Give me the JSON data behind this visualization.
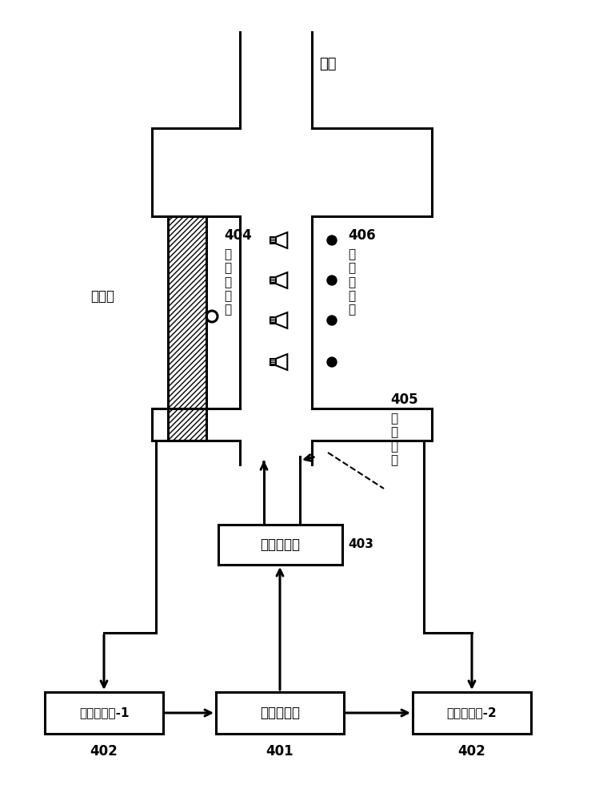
{
  "bg_color": "#ffffff",
  "line_color": "#000000",
  "wall_label": "墻體",
  "louver_label": "百葉窗",
  "ref_label_404": "404",
  "ref_label_text": "參\n考\n傳\n聲\n器",
  "err_label_406": "406",
  "err_label_text": "誤\n差\n傳\n聲\n器",
  "ctrl_src_405": "405",
  "ctrl_src_text": "控\n制\n聲\n源",
  "amp_label": "功率放大器",
  "amp_num": "403",
  "ctrl_label": "有源控制器",
  "ctrl_num": "401",
  "sig1_label": "信號調理器-1",
  "sig1_num": "402",
  "sig2_label": "信號調理器-2",
  "sig2_num": "402",
  "figw": 7.59,
  "figh": 10.0,
  "dpi": 100
}
